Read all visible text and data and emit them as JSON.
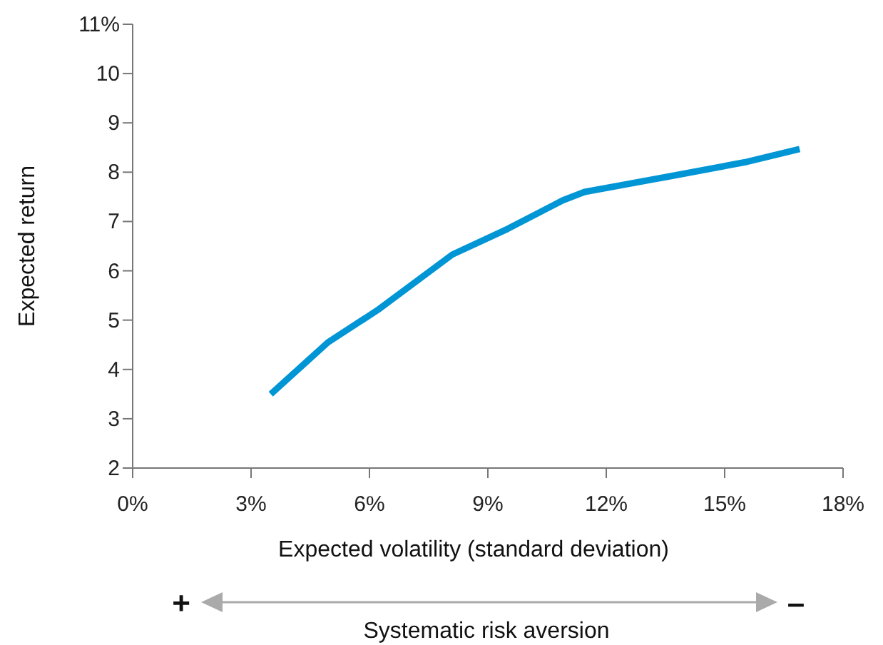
{
  "chart_data": {
    "type": "line",
    "xlabel": "Expected volatility (standard deviation)",
    "ylabel": "Expected return",
    "x": [
      3.5,
      4.95,
      6.2,
      8.1,
      9.5,
      10.9,
      11.45,
      13.5,
      15.5,
      16.9
    ],
    "series": [
      {
        "color": "#0095d5",
        "values": [
          3.5,
          4.55,
          5.2,
          6.33,
          6.85,
          7.43,
          7.6,
          7.9,
          8.2,
          8.47
        ]
      }
    ],
    "xlim": [
      0,
      18
    ],
    "xticks": [
      {
        "value": 0,
        "label": "0%"
      },
      {
        "value": 3,
        "label": "3%"
      },
      {
        "value": 6,
        "label": "6%"
      },
      {
        "value": 9,
        "label": "9%"
      },
      {
        "value": 12,
        "label": "12%"
      },
      {
        "value": 15,
        "label": "15%"
      },
      {
        "value": 18,
        "label": "18%"
      }
    ],
    "ylim": [
      2,
      11
    ],
    "yticks": [
      2,
      3,
      4,
      5,
      6,
      7,
      8,
      9,
      10,
      {
        "value": 11,
        "label": "11%"
      }
    ],
    "grid": false,
    "marker": "none",
    "line_style": "solid",
    "annotations": [
      "+",
      "–",
      "Systematic risk aversion"
    ]
  }
}
